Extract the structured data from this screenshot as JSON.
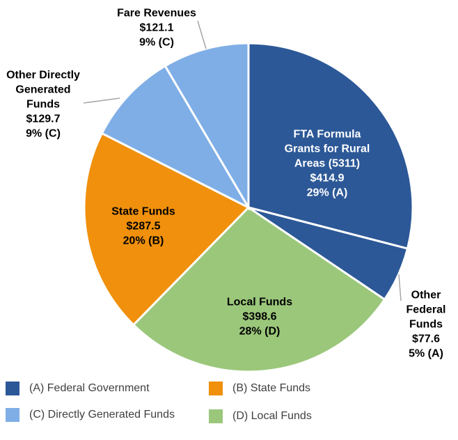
{
  "chart_data": {
    "type": "pie",
    "categories": [
      "FTA Formula Grants for Rural Areas (5311)",
      "Other Federal Funds",
      "Local Funds",
      "State Funds",
      "Other Directly Generated Funds",
      "Fare Revenues"
    ],
    "values": [
      414.9,
      77.6,
      398.6,
      287.5,
      129.7,
      121.1
    ],
    "value_labels": [
      "$414.9",
      "$77.6",
      "$398.6",
      "$287.5",
      "$129.7",
      "$121.1"
    ],
    "shares": [
      29,
      5,
      28,
      20,
      9,
      9
    ],
    "share_labels": [
      "29% (A)",
      "5% (A)",
      "28% (D)",
      "20% (B)",
      "9% (C)",
      "9% (C)"
    ],
    "colors": [
      "#2c5897",
      "#2c5897",
      "#9bc77b",
      "#f0900c",
      "#7faee6",
      "#7faee6"
    ],
    "legend": [
      {
        "label": "(A) Federal Government",
        "color": "#2c5897"
      },
      {
        "label": "(B) State Funds",
        "color": "#f0900c"
      },
      {
        "label": "(C) Directly Generated Funds",
        "color": "#7faee6"
      },
      {
        "label": "(D) Local Funds",
        "color": "#9bc77b"
      }
    ]
  }
}
